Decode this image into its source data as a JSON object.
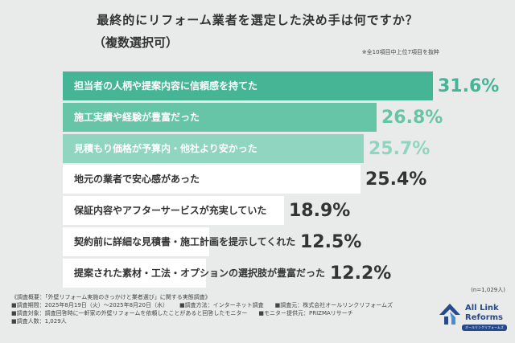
{
  "header": {
    "title": "最終的にリフォーム業者を選定した決め手は何ですか？",
    "subtitle": "（複数選択可）",
    "scope_note": "※全10項目中上位7項目を抜粋"
  },
  "chart_data": {
    "type": "bar",
    "orientation": "horizontal",
    "title": "最終的にリフォーム業者を選定した決め手は何ですか？",
    "subtitle": "（複数選択可）",
    "unit": "%",
    "xlim": [
      0,
      31.6
    ],
    "grid": false,
    "legend": "none",
    "categories": [
      "担当者の人柄や提案内容に信頼感を持てた",
      "施工実績や経験が豊富だった",
      "見積もり価格が予算内・他社より安かった",
      "地元の業者で安心感があった",
      "保証内容やアフターサービスが充実していた",
      "契約前に詳細な見積書・施工計画を提示してくれた",
      "提案された素材・工法・オプションの選択肢が豊富だった"
    ],
    "values": [
      31.6,
      26.8,
      25.7,
      25.4,
      18.9,
      12.5,
      12.2
    ],
    "value_labels": [
      "31.6%",
      "26.8%",
      "25.7%",
      "25.4%",
      "18.9%",
      "12.5%",
      "12.2%"
    ],
    "bar_colors": [
      "#45b596",
      "#66c5a6",
      "#8fd5bf",
      "#ffffff",
      "#ffffff",
      "#ffffff",
      "#ffffff"
    ],
    "label_colors": [
      "#ffffff",
      "#ffffff",
      "#ffffff",
      "#333333",
      "#333333",
      "#333333",
      "#333333"
    ],
    "value_colors": [
      "#45b596",
      "#66c5a6",
      "#8fd5bf",
      "#333333",
      "#333333",
      "#333333",
      "#333333"
    ]
  },
  "footer": {
    "sample_size": "(n=1,029人)",
    "notes": [
      [
        "《調査概要：「外壁リフォーム実施のきっかけと業者選び」に関する実態調査》"
      ],
      [
        "■調査期間：2025年8月19日（火）〜2025年8月20日（水）",
        "■調査方法：インターネット調査",
        "■調査元：株式会社オールリンクリフォームズ"
      ],
      [
        "■調査対象：調査回答時に一軒家の外壁リフォームを依頼したことがあると回答したモニター",
        "■モニター提供元：PRIZMAリサーチ"
      ],
      [
        "■調査人数：1,029人"
      ]
    ]
  },
  "logo": {
    "line1": "All Link",
    "line2": "Reforms",
    "tagline": "オールリンクリフォームズ",
    "color": "#264a8c"
  }
}
